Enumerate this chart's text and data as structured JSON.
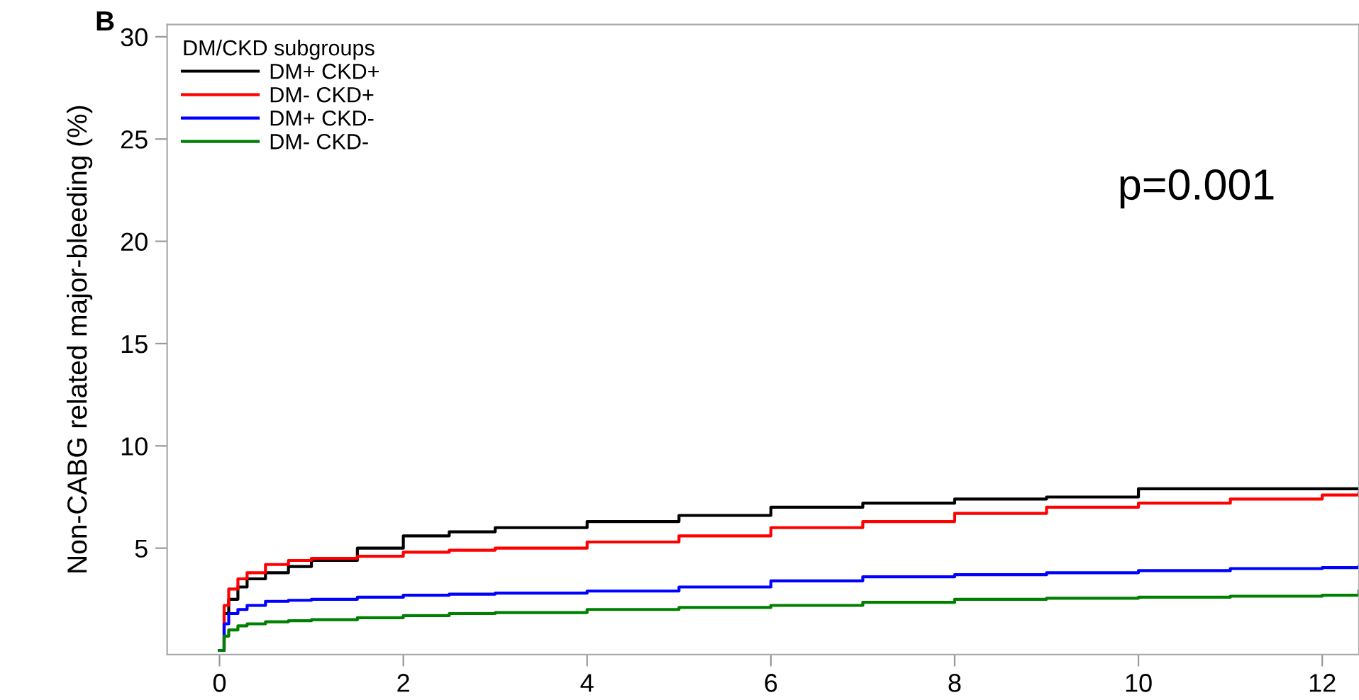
{
  "chart_data": {
    "type": "step",
    "ylabel": "Non-CABG related major-bleeding (%)",
    "legend_title": "DM/CKD subgroups",
    "legend": "top left",
    "grid": false,
    "annotations": [
      "B",
      "p=0.001"
    ],
    "xlim": [
      -0.57,
      12.4
    ],
    "xticks": [
      0,
      2,
      4,
      6,
      8,
      10,
      12
    ],
    "ylim": [
      -0.2,
      30.6
    ],
    "yticks": [
      5,
      10,
      15,
      20,
      25,
      30
    ],
    "x": [
      0,
      0.05,
      0.1,
      0.2,
      0.3,
      0.5,
      0.75,
      1,
      1.5,
      2,
      2.5,
      3,
      4,
      5,
      6,
      7,
      8,
      9,
      10,
      11,
      12,
      12.4
    ],
    "series": [
      {
        "name": "DM+ CKD+",
        "color": "#000000",
        "values": [
          0,
          1.8,
          2.5,
          3.1,
          3.5,
          3.8,
          4.1,
          4.4,
          5.0,
          5.6,
          5.8,
          6.0,
          6.3,
          6.6,
          7.0,
          7.2,
          7.4,
          7.5,
          7.9,
          7.9,
          7.9,
          7.9
        ]
      },
      {
        "name": "DM- CKD+",
        "color": "#ff0000",
        "values": [
          0,
          2.2,
          3.0,
          3.5,
          3.8,
          4.2,
          4.4,
          4.5,
          4.6,
          4.8,
          4.9,
          5.0,
          5.3,
          5.6,
          6.0,
          6.3,
          6.7,
          7.0,
          7.2,
          7.4,
          7.6,
          7.7
        ]
      },
      {
        "name": "DM+ CKD-",
        "color": "#0000ff",
        "values": [
          0,
          1.3,
          1.8,
          2.0,
          2.2,
          2.4,
          2.45,
          2.5,
          2.6,
          2.7,
          2.75,
          2.8,
          2.9,
          3.1,
          3.4,
          3.6,
          3.7,
          3.8,
          3.9,
          4.0,
          4.05,
          4.1
        ]
      },
      {
        "name": "DM- CKD-",
        "color": "#008000",
        "values": [
          0,
          0.7,
          1.0,
          1.2,
          1.3,
          1.4,
          1.45,
          1.5,
          1.6,
          1.7,
          1.8,
          1.85,
          2.0,
          2.1,
          2.2,
          2.35,
          2.5,
          2.55,
          2.6,
          2.65,
          2.7,
          2.9
        ]
      }
    ]
  }
}
